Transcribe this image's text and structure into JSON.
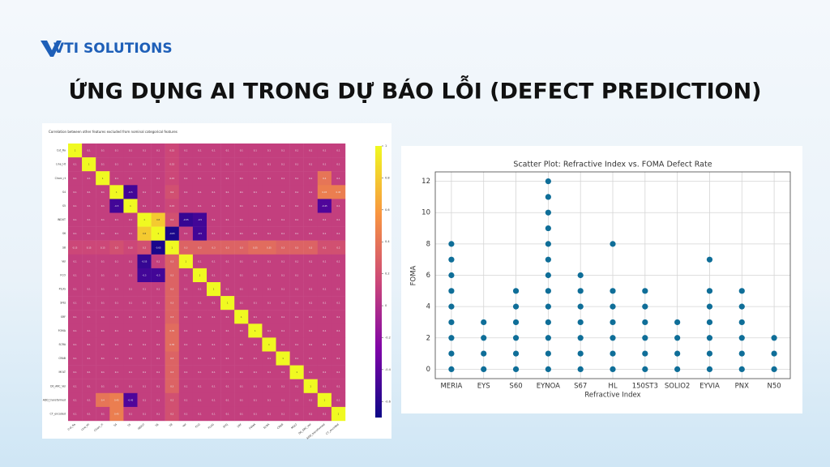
{
  "logo": "VTI SOLUTIONS",
  "title": "ỨNG DỤNG AI TRONG DỰ BÁO LỖI (DEFECT PREDICTION)",
  "chart_data": [
    {
      "type": "heatmap",
      "title": "Correlation between other features excluded from nominal categorical features",
      "categories": [
        "Cut_Ra",
        "Line_Ht",
        "Charc_rt",
        "S4",
        "S5",
        "INDUT",
        "S6",
        "S8",
        "Vel",
        "FCO",
        "PLUG",
        "SFEJ",
        "SRF",
        "FOMA",
        "SCRA",
        "CRAB",
        "MOLT",
        "D0_ARC_Vel",
        "ADD_transformed",
        "CT_encoded"
      ],
      "values": [
        [
          1,
          0.1,
          0.1,
          0.1,
          0.1,
          0.1,
          0.1,
          0.15,
          0.1,
          0.1,
          0.1,
          0.1,
          0.1,
          0.1,
          0.1,
          0.1,
          0.1,
          0.1,
          0.1,
          0.1
        ],
        [
          0.1,
          1,
          0.1,
          0.1,
          0.1,
          0.1,
          0.1,
          0.15,
          0.1,
          0.1,
          0.1,
          0.1,
          0.1,
          0.1,
          0.1,
          0.1,
          0.1,
          0.1,
          0.1,
          0.1
        ],
        [
          0.1,
          0.1,
          1,
          0.1,
          0.1,
          0.1,
          0.1,
          0.15,
          0.1,
          0.1,
          0.1,
          0.1,
          0.1,
          0.1,
          0.1,
          0.1,
          0.1,
          0.1,
          0.4,
          0.1
        ],
        [
          0.1,
          0.1,
          0.1,
          1,
          -0.5,
          0.1,
          0.1,
          0.2,
          0.1,
          0.1,
          0.1,
          0.1,
          0.1,
          0.1,
          0.1,
          0.1,
          0.1,
          0.1,
          0.45,
          0.45
        ],
        [
          0.1,
          0.1,
          0.1,
          -0.5,
          1,
          0.1,
          0.1,
          0.15,
          0.1,
          0.1,
          0.1,
          0.1,
          0.1,
          0.1,
          0.1,
          0.1,
          0.1,
          0.1,
          -0.45,
          0.1
        ],
        [
          0.1,
          0.1,
          0.1,
          0.1,
          0.1,
          1,
          0.8,
          0.2,
          -0.55,
          -0.5,
          0.1,
          0.1,
          0.1,
          0.1,
          0.1,
          0.1,
          0.1,
          0.1,
          0.1,
          0.1
        ],
        [
          0.1,
          0.1,
          0.1,
          0.1,
          0.1,
          0.8,
          1,
          -0.65,
          0.1,
          -0.5,
          0.1,
          0.1,
          0.1,
          0.1,
          0.1,
          0.1,
          0.1,
          0.1,
          0.1,
          0.1
        ],
        [
          0.15,
          0.15,
          0.15,
          0.2,
          0.15,
          0.2,
          -0.65,
          1,
          0.3,
          0.3,
          0.3,
          0.3,
          0.3,
          0.35,
          0.35,
          0.3,
          0.3,
          0.3,
          0.2,
          0.2
        ],
        [
          0.1,
          0.1,
          0.1,
          0.1,
          0.1,
          -0.55,
          0.1,
          0.3,
          1,
          0.1,
          0.1,
          0.1,
          0.1,
          0.1,
          0.1,
          0.1,
          0.1,
          0.1,
          0.1,
          0.1
        ],
        [
          0.1,
          0.1,
          0.1,
          0.1,
          0.1,
          -0.5,
          -0.5,
          0.3,
          0.1,
          1,
          0.1,
          0.1,
          0.1,
          0.1,
          0.1,
          0.1,
          0.1,
          0.1,
          0.1,
          0.1
        ],
        [
          0.1,
          0.1,
          0.1,
          0.1,
          0.1,
          0.1,
          0.1,
          0.3,
          0.1,
          0.1,
          1,
          0.1,
          0.1,
          0.1,
          0.1,
          0.1,
          0.1,
          0.1,
          0.1,
          0.1
        ],
        [
          0.1,
          0.1,
          0.1,
          0.1,
          0.1,
          0.1,
          0.1,
          0.3,
          0.1,
          0.1,
          0.1,
          1,
          0.1,
          0.1,
          0.1,
          0.1,
          0.1,
          0.1,
          0.1,
          0.1
        ],
        [
          0.1,
          0.1,
          0.1,
          0.1,
          0.1,
          0.1,
          0.1,
          0.3,
          0.1,
          0.1,
          0.1,
          0.1,
          1,
          0.1,
          0.1,
          0.1,
          0.1,
          0.1,
          0.1,
          0.1
        ],
        [
          0.1,
          0.1,
          0.1,
          0.1,
          0.1,
          0.1,
          0.1,
          0.35,
          0.1,
          0.1,
          0.1,
          0.1,
          0.1,
          1,
          0.1,
          0.1,
          0.1,
          0.1,
          0.1,
          0.1
        ],
        [
          0.1,
          0.1,
          0.1,
          0.1,
          0.1,
          0.1,
          0.1,
          0.35,
          0.1,
          0.1,
          0.1,
          0.1,
          0.1,
          0.1,
          1,
          0.1,
          0.1,
          0.1,
          0.1,
          0.1
        ],
        [
          0.1,
          0.1,
          0.1,
          0.1,
          0.1,
          0.1,
          0.1,
          0.3,
          0.1,
          0.1,
          0.1,
          0.1,
          0.1,
          0.1,
          0.1,
          1,
          0.1,
          0.1,
          0.1,
          0.1
        ],
        [
          0.1,
          0.1,
          0.1,
          0.1,
          0.1,
          0.1,
          0.1,
          0.3,
          0.1,
          0.1,
          0.1,
          0.1,
          0.1,
          0.1,
          0.1,
          0.1,
          1,
          0.1,
          0.1,
          0.1
        ],
        [
          0.1,
          0.1,
          0.1,
          0.1,
          0.1,
          0.1,
          0.1,
          0.3,
          0.1,
          0.1,
          0.1,
          0.1,
          0.1,
          0.1,
          0.1,
          0.1,
          0.1,
          1,
          0.1,
          0.1
        ],
        [
          0.1,
          0.1,
          0.4,
          0.45,
          -0.45,
          0.1,
          0.1,
          0.2,
          0.1,
          0.1,
          0.1,
          0.1,
          0.1,
          0.1,
          0.1,
          0.1,
          0.1,
          0.1,
          1,
          0.1
        ],
        [
          0.1,
          0.1,
          0.1,
          0.45,
          0.1,
          0.1,
          0.1,
          0.2,
          0.1,
          0.1,
          0.1,
          0.1,
          0.1,
          0.1,
          0.1,
          0.1,
          0.1,
          0.1,
          0.1,
          1
        ]
      ],
      "colormap": "plasma",
      "zlim": [
        -0.7,
        1
      ],
      "zticks": [
        1,
        0.8,
        0.6,
        0.4,
        0.2,
        0,
        -0.2,
        -0.4,
        -0.6
      ]
    },
    {
      "type": "scatter",
      "title": "Scatter Plot: Refractive Index vs. FOMA Defect Rate",
      "xlabel": "Refractive Index",
      "ylabel": "FOMA",
      "categories": [
        "MERIA",
        "EYS",
        "S60",
        "EYNOA",
        "S67",
        "HL",
        "150ST3",
        "SOLIO2",
        "EYVIA",
        "PNX",
        "N50"
      ],
      "values": [
        [
          0,
          1,
          2,
          3,
          4,
          5,
          6,
          7,
          8
        ],
        [
          0,
          1,
          2,
          3
        ],
        [
          0,
          1,
          2,
          3,
          4,
          5
        ],
        [
          0,
          1,
          2,
          3,
          4,
          5,
          6,
          7,
          8,
          9,
          10,
          11,
          12
        ],
        [
          0,
          1,
          2,
          3,
          4,
          5,
          6
        ],
        [
          0,
          1,
          2,
          3,
          4,
          5,
          8
        ],
        [
          0,
          1,
          2,
          3,
          4,
          5
        ],
        [
          0,
          1,
          2,
          3
        ],
        [
          0,
          1,
          2,
          3,
          4,
          5,
          7
        ],
        [
          0,
          1,
          2,
          3,
          4,
          5
        ],
        [
          0,
          1,
          2
        ]
      ],
      "color": "#0f6e98",
      "ylim": [
        -0.6,
        12.6
      ],
      "yticks": [
        0,
        2,
        4,
        6,
        8,
        10,
        12
      ],
      "grid": true
    }
  ]
}
